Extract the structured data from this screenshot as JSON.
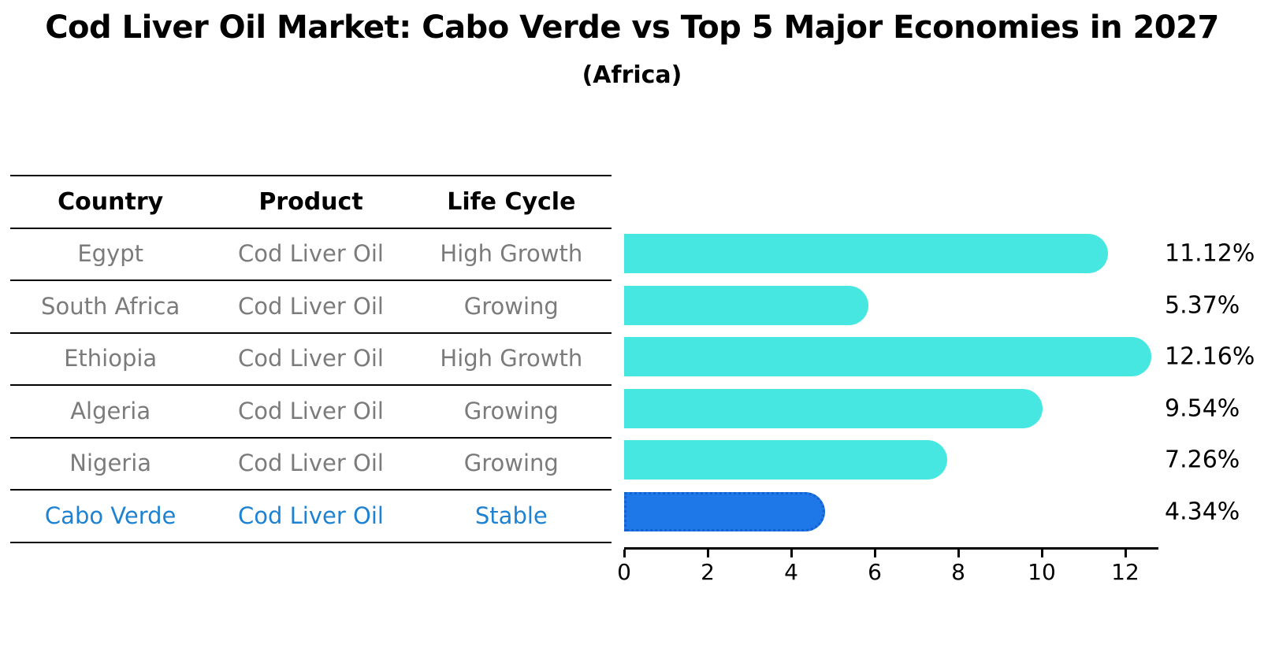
{
  "title": "Cod Liver Oil Market: Cabo Verde vs Top 5 Major Economies in 2027",
  "subtitle": "(Africa)",
  "colors": {
    "bar_default": "#45e7e0",
    "bar_highlight": "#1e78e8",
    "bar_highlight_edge": "#1560ce",
    "table_row_text": "#7b7b7b",
    "table_highlight_text": "#1e82d2",
    "axis_and_lines": "#000000",
    "background": "#ffffff"
  },
  "table": {
    "headers": [
      "Country",
      "Product",
      "Life Cycle"
    ],
    "rows": [
      {
        "country": "Egypt",
        "product": "Cod Liver Oil",
        "life_cycle": "High Growth",
        "highlight": false
      },
      {
        "country": "South Africa",
        "product": "Cod Liver Oil",
        "life_cycle": "Growing",
        "highlight": false
      },
      {
        "country": "Ethiopia",
        "product": "Cod Liver Oil",
        "life_cycle": "High Growth",
        "highlight": false
      },
      {
        "country": "Algeria",
        "product": "Cod Liver Oil",
        "life_cycle": "Growing",
        "highlight": false
      },
      {
        "country": "Nigeria",
        "product": "Cod Liver Oil",
        "life_cycle": "Growing",
        "highlight": false
      },
      {
        "country": "Cabo Verde",
        "product": "Cod Liver Oil",
        "life_cycle": "Stable",
        "highlight": true
      }
    ]
  },
  "chart_data": {
    "type": "bar",
    "orientation": "horizontal",
    "title": "Cod Liver Oil Market: Cabo Verde vs Top 5 Major Economies in 2027",
    "subtitle": "(Africa)",
    "categories": [
      "Egypt",
      "South Africa",
      "Ethiopia",
      "Algeria",
      "Nigeria",
      "Cabo Verde"
    ],
    "values": [
      11.12,
      5.37,
      12.16,
      9.54,
      7.26,
      4.34
    ],
    "value_labels": [
      "11.12%",
      "5.37%",
      "12.16%",
      "9.54%",
      "7.26%",
      "4.34%"
    ],
    "highlight_category": "Cabo Verde",
    "highlight_index": 5,
    "xlabel": "",
    "ylabel": "",
    "xlim": [
      0,
      12.75
    ],
    "xticks": [
      0,
      2,
      4,
      6,
      8,
      10,
      12
    ],
    "grid": false,
    "legend": null
  }
}
